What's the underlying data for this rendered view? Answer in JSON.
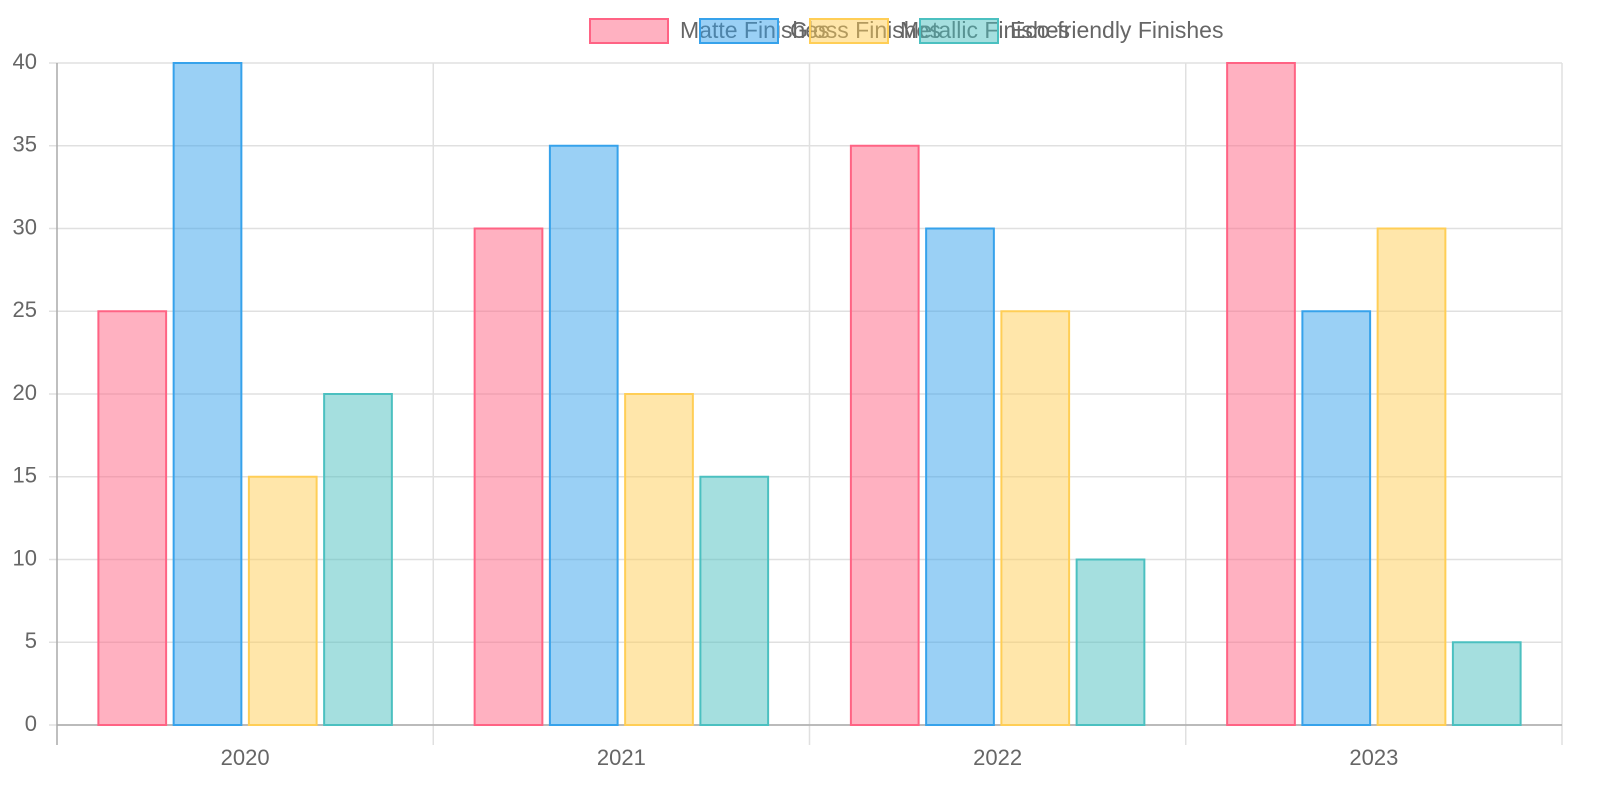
{
  "chart_data": {
    "type": "bar",
    "categories": [
      "2020",
      "2021",
      "2022",
      "2023"
    ],
    "series": [
      {
        "name": "Matte Finishes",
        "color": "#ff6384",
        "values": [
          25,
          30,
          35,
          40
        ]
      },
      {
        "name": "Gloss Finishes",
        "color": "#36a2eb",
        "values": [
          40,
          35,
          30,
          25
        ]
      },
      {
        "name": "Metallic Finishes",
        "color": "#ffce56",
        "values": [
          15,
          20,
          25,
          30
        ]
      },
      {
        "name": "Eco-friendly Finishes",
        "color": "#4bc0c0",
        "values": [
          20,
          15,
          10,
          5
        ]
      }
    ],
    "ylim": [
      0,
      40
    ],
    "yticks": [
      0,
      5,
      10,
      15,
      20,
      25,
      30,
      35,
      40
    ],
    "grid": true,
    "legend": "top"
  }
}
